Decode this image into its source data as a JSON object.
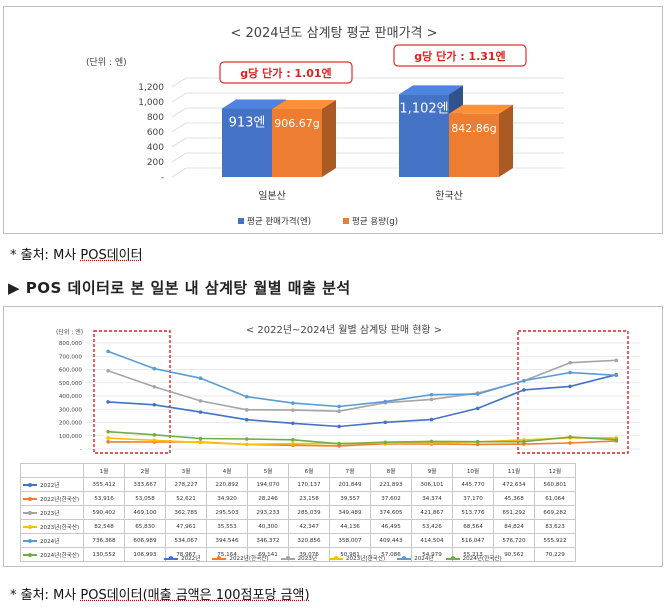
{
  "chart_data": [
    {
      "type": "bar",
      "title": "< 2024년도 삼계탕 평균 판매가격 >",
      "unit_label": "(단위 : 엔)",
      "categories": [
        "일본산",
        "한국산"
      ],
      "ylim": [
        0,
        1200
      ],
      "y_ticks": [
        "-",
        "200",
        "400",
        "600",
        "800",
        "1,000",
        "1,200"
      ],
      "series": [
        {
          "name": "평균 판매가격(엔)",
          "values": [
            913,
            1102
          ],
          "labels": [
            "913엔",
            "1,102엔"
          ],
          "color": "#4472C4"
        },
        {
          "name": "평균 용량(g)",
          "values": [
            906.67,
            842.86
          ],
          "labels": [
            "906.67g",
            "842.86g"
          ],
          "color": "#ED7D31"
        }
      ],
      "annotations": [
        "g당 단가 : 1.01엔",
        "g당 단가 : 1.31엔"
      ]
    },
    {
      "type": "line",
      "title": "< 2022년~2024년 월별 삼계탕 판매 현황 >",
      "unit_label": "(단위 : 엔)",
      "categories": [
        "1월",
        "2월",
        "3월",
        "4월",
        "5월",
        "6월",
        "7월",
        "8월",
        "9월",
        "10월",
        "11월",
        "12월"
      ],
      "ylim": [
        0,
        800000
      ],
      "y_ticks": [
        "-",
        "100,000",
        "200,000",
        "300,000",
        "400,000",
        "500,000",
        "600,000",
        "700,000",
        "800,000"
      ],
      "series": [
        {
          "name": "2022년",
          "color": "#4472C4",
          "values": [
            355412,
            333667,
            278227,
            220892,
            194070,
            170137,
            201849,
            221893,
            306101,
            445770,
            472634,
            560801
          ],
          "labels": [
            "355,412",
            "333,667",
            "278,227",
            "220,892",
            "194,070",
            "170,137",
            "201,849",
            "221,893",
            "306,101",
            "445,770",
            "472,634",
            "560,801"
          ]
        },
        {
          "name": "2022년(한국산)",
          "color": "#ED7D31",
          "values": [
            53916,
            53058,
            52621,
            34920,
            28246,
            23158,
            39557,
            37602,
            34374,
            37170,
            45368,
            61064
          ],
          "labels": [
            "53,916",
            "53,058",
            "52,621",
            "34,920",
            "28,246",
            "23,158",
            "39,557",
            "37,602",
            "34,374",
            "37,170",
            "45,368",
            "61,064"
          ]
        },
        {
          "name": "2023년",
          "color": "#A5A5A5",
          "values": [
            590402,
            469100,
            362785,
            295503,
            293233,
            285039,
            349489,
            374605,
            421867,
            513776,
            651292,
            669282
          ],
          "labels": [
            "590,402",
            "469,100",
            "362,785",
            "295,503",
            "293,233",
            "285,039",
            "349,489",
            "374,605",
            "421,867",
            "513,776",
            "651,292",
            "669,282"
          ]
        },
        {
          "name": "2023년(한국산)",
          "color": "#FFC000",
          "values": [
            82548,
            65830,
            47961,
            35553,
            40300,
            42347,
            44136,
            46495,
            53426,
            68564,
            84824,
            83623
          ],
          "labels": [
            "82,548",
            "65,830",
            "47,961",
            "35,553",
            "40,300",
            "42,347",
            "44,136",
            "46,495",
            "53,426",
            "68,564",
            "84,824",
            "83,623"
          ]
        },
        {
          "name": "2024년",
          "color": "#5B9BD5",
          "values": [
            736368,
            606989,
            534067,
            394546,
            346372,
            320856,
            358007,
            409443,
            414504,
            516047,
            576720,
            555922
          ],
          "labels": [
            "736,368",
            "606,989",
            "534,067",
            "394,546",
            "346,372",
            "320,856",
            "358,007",
            "409,443",
            "414,504",
            "516,047",
            "576,720",
            "555,922"
          ]
        },
        {
          "name": "2024년(한국산)",
          "color": "#70AD47",
          "values": [
            130552,
            106993,
            78967,
            75164,
            69141,
            39076,
            50981,
            57086,
            54979,
            55213,
            90562,
            70229
          ],
          "labels": [
            "130,552",
            "106,993",
            "78,967",
            "75,164",
            "69,141",
            "39,076",
            "50,981",
            "57,086",
            "54,979",
            "55,213",
            "90,562",
            "70,229"
          ]
        }
      ]
    }
  ],
  "notes": {
    "note1_prefix": "* 출처: M사 ",
    "note1_source": "POS데이터",
    "note2_prefix": "* 출처: M사 ",
    "note2_source": "POS데이터(매출 금액은 100점포당 금액)"
  },
  "heading": "▶  POS 데이터로 본 일본 내 삼계탕 월별 매출 분석"
}
